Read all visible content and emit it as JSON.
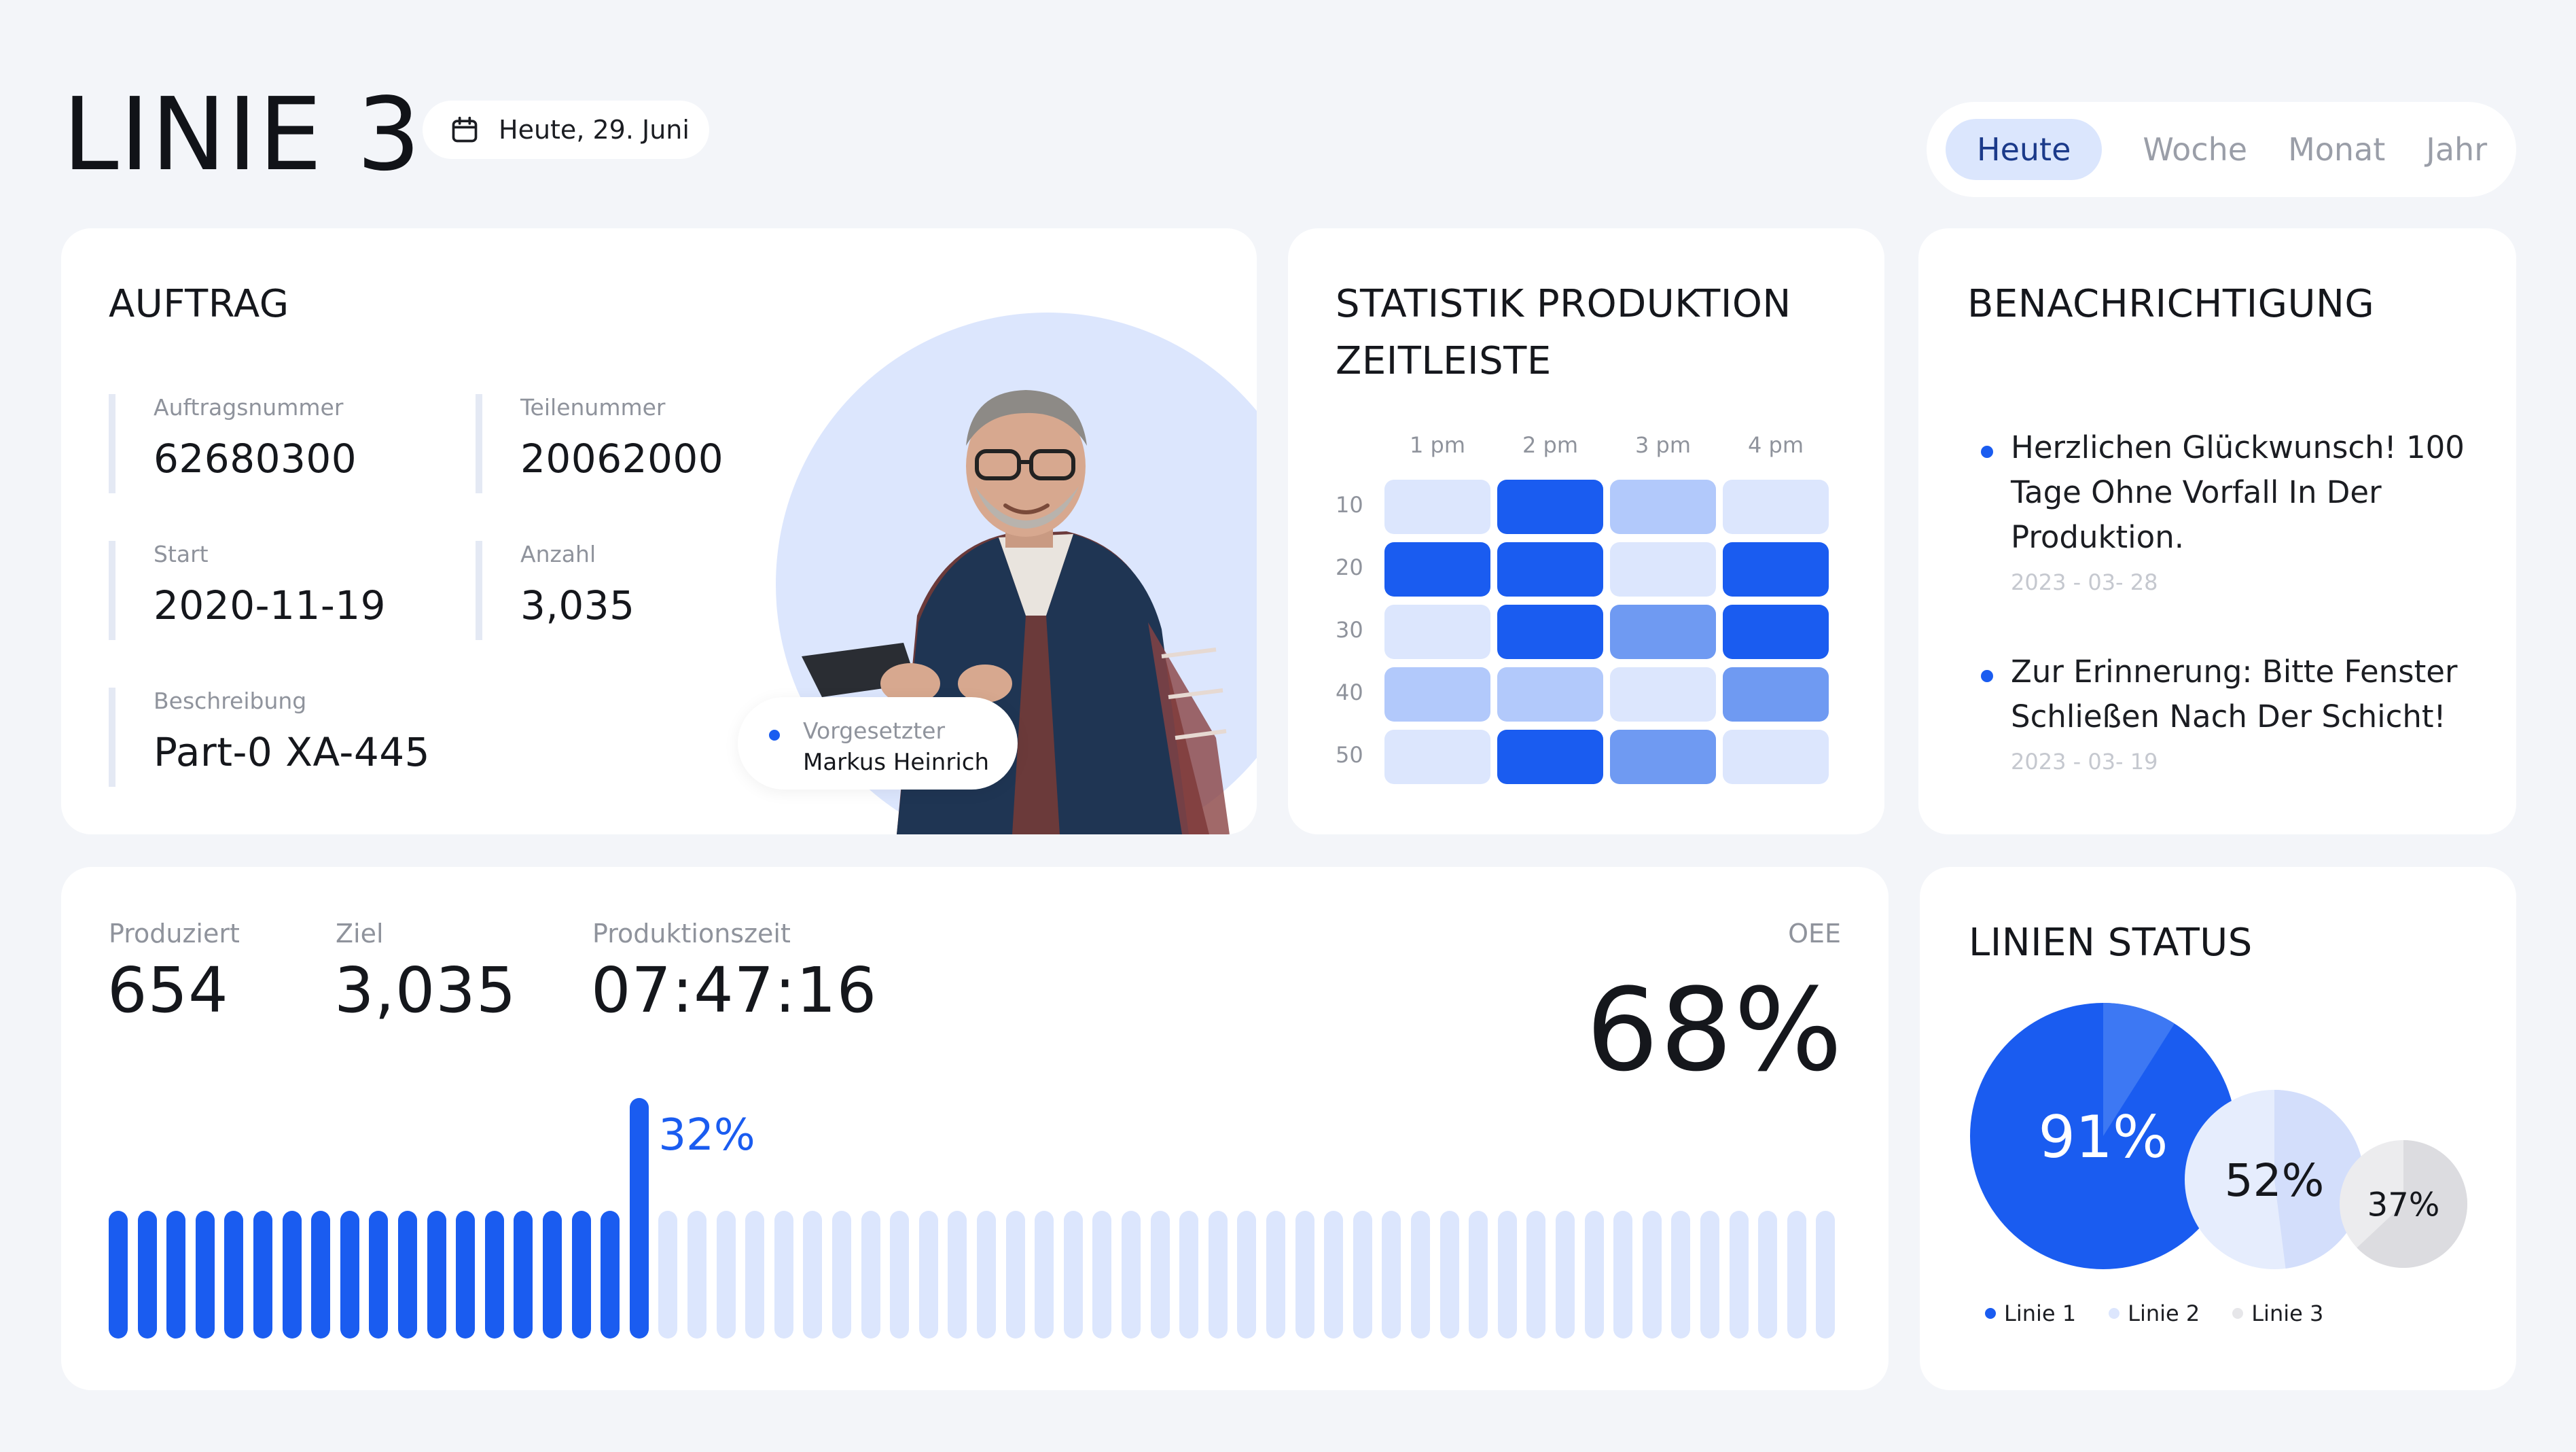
{
  "header": {
    "title": "LINIE 3",
    "date_label": "Heute, 29. Juni",
    "tabs": [
      {
        "label": "Heute",
        "active": true
      },
      {
        "label": "Woche",
        "active": false
      },
      {
        "label": "Monat",
        "active": false
      },
      {
        "label": "Jahr",
        "active": false
      }
    ]
  },
  "auftrag": {
    "title": "AUFTRAG",
    "fields": {
      "auftragsnummer": {
        "label": "Auftragsnummer",
        "value": "62680300"
      },
      "teilenummer": {
        "label": "Teilenummer",
        "value": "20062000"
      },
      "start": {
        "label": "Start",
        "value": "2020-11-19"
      },
      "anzahl": {
        "label": "Anzahl",
        "value": "3,035"
      },
      "beschreibung": {
        "label": "Beschreibung",
        "value": "Part-0 XA-445"
      }
    },
    "supervisor": {
      "label": "Vorgesetzter",
      "name": "Markus Heinrich"
    }
  },
  "statistik": {
    "title_line1": "STATISTIK PRODUKTION",
    "title_line2": "ZEITLEISTE",
    "columns": [
      "1 pm",
      "2 pm",
      "3 pm",
      "4 pm"
    ],
    "rows": [
      "10",
      "20",
      "30",
      "40",
      "50"
    ],
    "intensity": [
      [
        1,
        4,
        2,
        1
      ],
      [
        4,
        4,
        1,
        4
      ],
      [
        1,
        4,
        3,
        4
      ],
      [
        2,
        2,
        1,
        3
      ],
      [
        1,
        4,
        3,
        1
      ]
    ],
    "palette": [
      "#ffffff",
      "#dce6fd",
      "#b2c9fb",
      "#6f9af2",
      "#1a5cf0"
    ]
  },
  "notifications": {
    "title": "BENACHRICHTIGUNG",
    "items": [
      {
        "message": "Herzlichen Glückwunsch! 100 Tage Ohne Vorfall In Der Produktion.",
        "date": "2023 - 03- 28"
      },
      {
        "message": "Zur Erinnerung: Bitte Fenster Schließen Nach Der Schicht!",
        "date": "2023 - 03- 19"
      }
    ]
  },
  "production": {
    "produziert": {
      "label": "Produziert",
      "value": "654"
    },
    "ziel": {
      "label": "Ziel",
      "value": "3,035"
    },
    "zeit": {
      "label": "Produktionszeit",
      "value": "07:47:16"
    },
    "oee": {
      "label": "OEE",
      "value": "68%"
    },
    "progress_label": "32%",
    "progress": 0.32,
    "total_bars": 60,
    "colors": {
      "filled": "#1a5cf0",
      "empty": "#dce6fd"
    }
  },
  "linien_status": {
    "title": "LINIEN STATUS",
    "lines": [
      {
        "name": "Linie 1",
        "value": 91,
        "label": "91%",
        "color": "#1a5cf0"
      },
      {
        "name": "Linie 2",
        "value": 52,
        "label": "52%",
        "color": "#e3ebfd"
      },
      {
        "name": "Linie 3",
        "value": 37,
        "label": "37%",
        "color": "#ececee"
      }
    ]
  }
}
